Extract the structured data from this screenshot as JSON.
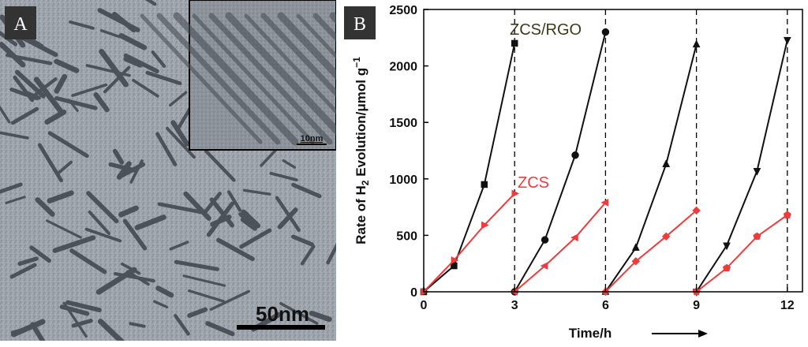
{
  "panel_a": {
    "label": "A",
    "scale_bar": "50nm",
    "inset_scale_bar": "10nm"
  },
  "panel_b_label": "B",
  "chart_data": {
    "type": "line",
    "xlabel": "Time/h",
    "ylabel_parts": [
      "Rate of H",
      "2",
      " Evolution/μmol g",
      "−1"
    ],
    "xlim": [
      0,
      12.5
    ],
    "ylim": [
      0,
      2500
    ],
    "xticks": [
      0,
      3,
      6,
      9,
      12
    ],
    "yticks": [
      0,
      500,
      1000,
      1500,
      2000,
      2500
    ],
    "cycle_dividers": [
      3,
      6,
      9,
      12
    ],
    "series": [
      {
        "name": "ZCS/RGO",
        "color": "#111111",
        "cycles": [
          {
            "marker": "square",
            "x": [
              0,
              1,
              2,
              3
            ],
            "y": [
              0,
              230,
              950,
              2200
            ]
          },
          {
            "marker": "circle",
            "x": [
              3,
              4,
              5,
              6
            ],
            "y": [
              0,
              460,
              1210,
              2300
            ]
          },
          {
            "marker": "triangle-up",
            "x": [
              6,
              7,
              8,
              9
            ],
            "y": [
              0,
              390,
              1130,
              2190
            ]
          },
          {
            "marker": "triangle-down",
            "x": [
              9,
              10,
              11,
              12
            ],
            "y": [
              0,
              410,
              1070,
              2230
            ]
          }
        ]
      },
      {
        "name": "ZCS",
        "color": "#ef3b3b",
        "cycles": [
          {
            "marker": "triangle-right",
            "x": [
              0,
              1,
              2,
              3
            ],
            "y": [
              0,
              280,
              590,
              870
            ]
          },
          {
            "marker": "triangle-left",
            "x": [
              3,
              4,
              5,
              6
            ],
            "y": [
              0,
              230,
              480,
              790
            ]
          },
          {
            "marker": "diamond",
            "x": [
              6,
              7,
              8,
              9
            ],
            "y": [
              0,
              270,
              490,
              720
            ]
          },
          {
            "marker": "pentagon",
            "x": [
              9,
              10,
              11,
              12
            ],
            "y": [
              0,
              210,
              490,
              680
            ]
          }
        ]
      }
    ]
  }
}
